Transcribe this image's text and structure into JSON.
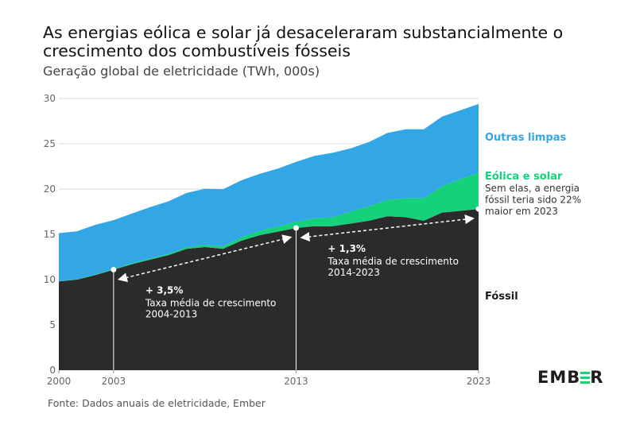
{
  "header": {
    "title": "As energias eólica e solar já desaceleraram substancialmente o crescimento dos combustíveis fósseis",
    "subtitle": "Geração global de eletricidade (TWh, 000s)"
  },
  "footer": {
    "source": "Fonte: Dados anuais de eletricidade, Ember",
    "logo_left": "EMB",
    "logo_right": "R"
  },
  "colors": {
    "fossil": "#2b2b2b",
    "wind_solar": "#15d27a",
    "other_clean": "#33a6e6",
    "grid": "#d9d9d9"
  },
  "chart_data": {
    "type": "area",
    "stacked": true,
    "x": [
      2000,
      2001,
      2002,
      2003,
      2004,
      2005,
      2006,
      2007,
      2008,
      2009,
      2010,
      2011,
      2012,
      2013,
      2014,
      2015,
      2016,
      2017,
      2018,
      2019,
      2020,
      2021,
      2022,
      2023
    ],
    "xticks": [
      2000,
      2003,
      2013,
      2023
    ],
    "ylim": [
      0,
      30
    ],
    "yticks": [
      0,
      5,
      10,
      15,
      20,
      25,
      30
    ],
    "grid": true,
    "series": [
      {
        "name": "Fóssil",
        "color": "#2b2b2b",
        "values": [
          9.8,
          10.0,
          10.5,
          11.1,
          11.7,
          12.2,
          12.7,
          13.4,
          13.6,
          13.4,
          14.3,
          14.9,
          15.3,
          15.7,
          15.9,
          15.9,
          16.2,
          16.5,
          17.0,
          16.9,
          16.5,
          17.4,
          17.6,
          17.8
        ]
      },
      {
        "name": "Eólica e solar",
        "color": "#15d27a",
        "values": [
          0.03,
          0.04,
          0.05,
          0.07,
          0.09,
          0.1,
          0.14,
          0.17,
          0.23,
          0.28,
          0.37,
          0.48,
          0.56,
          0.7,
          0.86,
          1.0,
          1.3,
          1.6,
          1.8,
          2.1,
          2.5,
          2.9,
          3.5,
          4.0
        ]
      },
      {
        "name": "Outras limpas",
        "color": "#33a6e6",
        "values": [
          5.3,
          5.3,
          5.5,
          5.4,
          5.5,
          5.7,
          5.8,
          6.0,
          6.2,
          6.3,
          6.3,
          6.3,
          6.4,
          6.6,
          6.9,
          7.1,
          7.0,
          7.1,
          7.4,
          7.6,
          7.6,
          7.7,
          7.6,
          7.6
        ]
      }
    ],
    "labels": {
      "other_clean": "Outras limpas",
      "wind_solar": "Eólica e solar",
      "wind_solar_note": [
        "Sem elas, a energia",
        "fóssil teria sido 22%",
        "maior em 2023"
      ],
      "fossil": "Fóssil"
    },
    "annotations": [
      {
        "from_year": 2003,
        "from_value": 11.1,
        "to_year": 2013,
        "to_value": 15.7,
        "rate": "+ 3,5%",
        "lines": [
          "Taxa média de crescimento",
          "2004-2013"
        ]
      },
      {
        "from_year": 2013,
        "from_value": 15.7,
        "to_year": 2023,
        "to_value": 17.8,
        "rate": "+ 1,3%",
        "lines": [
          "Taxa média de crescimento",
          "2014-2023"
        ]
      }
    ]
  }
}
